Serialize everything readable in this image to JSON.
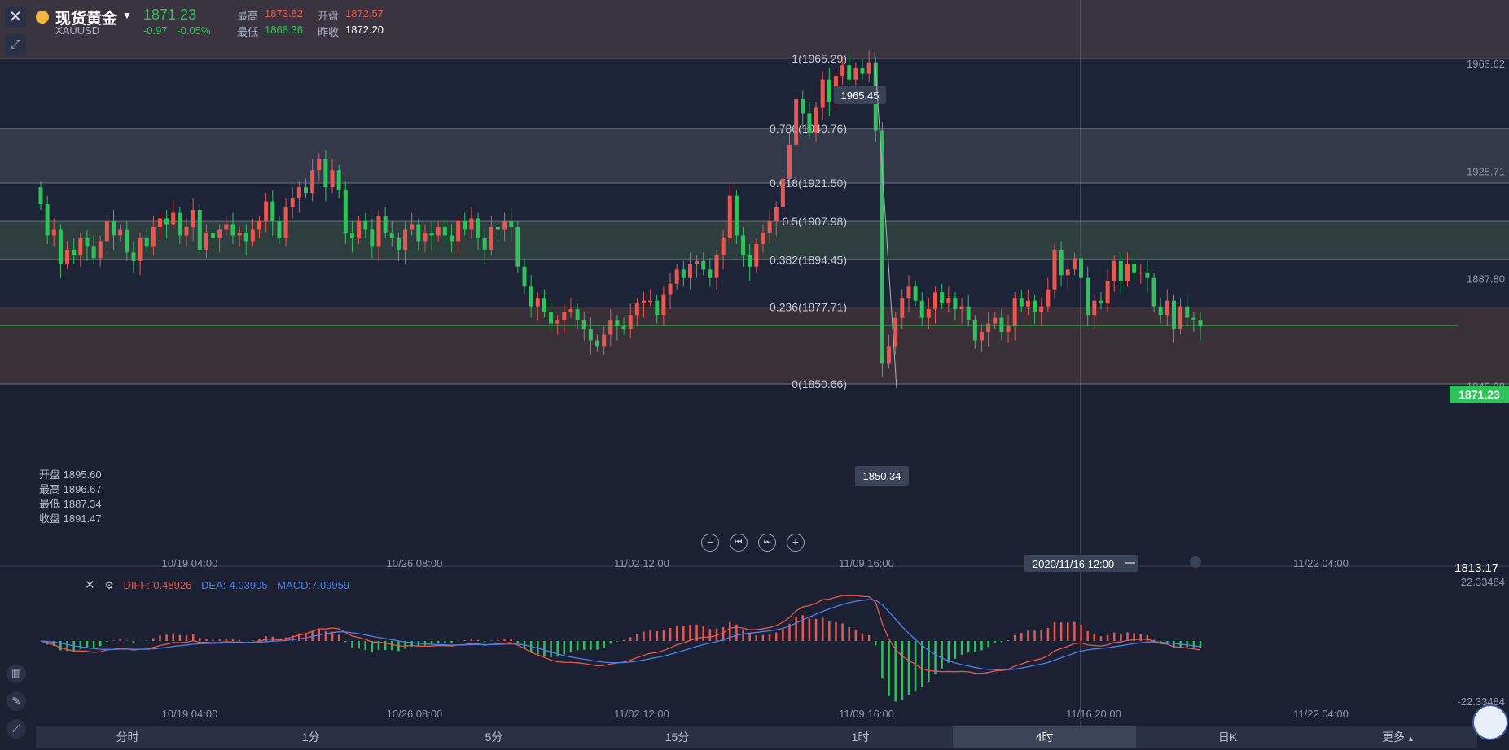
{
  "header": {
    "instrument_name": "现货黄金",
    "symbol": "XAUUSD",
    "last_price": "1871.23",
    "change": "-0.97",
    "change_pct": "-0.05%",
    "high_label": "最高",
    "high": "1873.82",
    "open_label": "开盘",
    "open": "1872.57",
    "low_label": "最低",
    "low": "1868.36",
    "prev_close_label": "昨收",
    "prev_close": "1872.20"
  },
  "ohlc_readout": {
    "open": "开盘 1895.60",
    "high": "最高 1896.67",
    "low": "最低 1887.34",
    "close": "收盘 1891.47"
  },
  "macd_legend": {
    "diff": "DIFF:-0.48926",
    "dea": "DEA:-4.03905",
    "macd": "MACD:7.09959"
  },
  "price_axis": {
    "top_max": "",
    "labels": [
      "1963.62",
      "1925.71",
      "1887.80",
      "1849.88"
    ],
    "current_price_tag": "1871.23",
    "bottom_value": "1813.17"
  },
  "macd_axis": {
    "top": "22.33484",
    "bottom": "-22.33484"
  },
  "time_axis": {
    "main": [
      "10/19 04:00",
      "10/26 08:00",
      "11/02 12:00",
      "11/09 16:00",
      "11/22 04:00"
    ],
    "crosshair_time": "2020/11/16 12:00",
    "macd": [
      "10/19 04:00",
      "10/26 08:00",
      "11/02 12:00",
      "11/09 16:00",
      "11/16 20:00",
      "11/22 04:00"
    ]
  },
  "markers": {
    "high": "1965.45",
    "low": "1850.34"
  },
  "tabs": [
    "分时",
    "1分",
    "5分",
    "15分",
    "1时",
    "4时",
    "日K",
    "更多"
  ],
  "active_tab": "4时",
  "colors": {
    "up": "#e9574f",
    "down": "#2fc25b",
    "diff": "#e9574f",
    "dea": "#4f7fe8"
  },
  "chart_data": {
    "type": "candlestick",
    "title": "",
    "y_range": [
      1826,
      1986
    ],
    "fibonacci": [
      {
        "ratio": "1",
        "label": "1(1965.29)",
        "value": 1965.29
      },
      {
        "ratio": "0.786",
        "label": "0.786(1940.76)",
        "value": 1940.76
      },
      {
        "ratio": "0.618",
        "label": "0.618(1921.50)",
        "value": 1921.5
      },
      {
        "ratio": "0.5",
        "label": "0.5(1907.98)",
        "value": 1907.98
      },
      {
        "ratio": "0.382",
        "label": "0.382(1894.45)",
        "value": 1894.45
      },
      {
        "ratio": "0.236",
        "label": "0.236(1877.71)",
        "value": 1877.71
      },
      {
        "ratio": "0",
        "label": "0(1850.66)",
        "value": 1850.66
      }
    ],
    "closes": [
      1914,
      1903,
      1905,
      1893,
      1898,
      1896,
      1902,
      1899,
      1895,
      1901,
      1908,
      1903,
      1905,
      1897,
      1894,
      1902,
      1899,
      1906,
      1909,
      1907,
      1911,
      1903,
      1906,
      1912,
      1898,
      1904,
      1902,
      1905,
      1907,
      1903,
      1904,
      1901,
      1905,
      1908,
      1915,
      1908,
      1902,
      1913,
      1916,
      1920,
      1918,
      1926,
      1930,
      1920,
      1926,
      1919,
      1904,
      1902,
      1908,
      1905,
      1899,
      1910,
      1904,
      1902,
      1898,
      1905,
      1907,
      1901,
      1904,
      1903,
      1906,
      1903,
      1901,
      1908,
      1905,
      1909,
      1902,
      1898,
      1906,
      1905,
      1908,
      1906,
      1892,
      1885,
      1878,
      1881,
      1876,
      1872,
      1873,
      1876,
      1877,
      1873,
      1870,
      1866,
      1864,
      1868,
      1873,
      1871,
      1870,
      1875,
      1879,
      1880,
      1880,
      1875,
      1882,
      1886,
      1891,
      1888,
      1893,
      1894,
      1891,
      1888,
      1896,
      1902,
      1917,
      1903,
      1896,
      1892,
      1900,
      1904,
      1908,
      1913,
      1923,
      1935,
      1951,
      1946,
      1939,
      1948,
      1958,
      1950,
      1959,
      1963,
      1958,
      1962,
      1960,
      1964,
      1940,
      1858,
      1864,
      1874,
      1881,
      1885,
      1880,
      1874,
      1877,
      1883,
      1879,
      1881,
      1877,
      1878,
      1873,
      1866,
      1869,
      1872,
      1874,
      1869,
      1871,
      1881,
      1878,
      1880,
      1876,
      1878,
      1884,
      1898,
      1889,
      1891,
      1895,
      1888,
      1875,
      1880,
      1879,
      1887,
      1894,
      1887,
      1893,
      1890,
      1890,
      1888,
      1878,
      1875,
      1880,
      1870,
      1878,
      1874,
      1873,
      1871
    ]
  }
}
